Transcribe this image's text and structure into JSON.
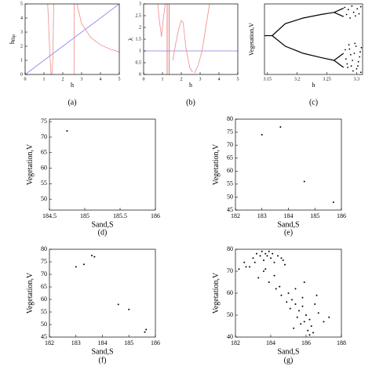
{
  "chart_data": [
    {
      "type": "line",
      "caption": "(a)",
      "xlabel": "h",
      "ylabel": "h",
      "ylabel_sub": "flip",
      "xlim": [
        0,
        5
      ],
      "ylim": [
        0,
        5
      ],
      "xticks": [
        0,
        1,
        2,
        3,
        4,
        5
      ],
      "yticks": [
        0,
        1,
        2,
        3,
        4,
        5
      ],
      "series": [
        {
          "color": "#7b7bf0",
          "x": [
            0,
            5
          ],
          "values": [
            0,
            5
          ]
        },
        {
          "color": "#f08a8a",
          "x": [
            1.2,
            1.28,
            1.33,
            1.38
          ],
          "values": [
            5,
            2.5,
            1,
            0
          ]
        },
        {
          "color": "#f08a8a",
          "x": [
            1.42,
            1.47,
            1.52
          ],
          "values": [
            0,
            1,
            5
          ]
        },
        {
          "color": "#f08a8a",
          "x": [
            2.6,
            2.6
          ],
          "values": [
            0,
            5
          ]
        },
        {
          "color": "#f08a8a",
          "x": [
            2.75,
            3,
            3.5,
            4,
            4.5,
            5
          ],
          "values": [
            5,
            3.6,
            2.6,
            2.1,
            1.8,
            1.6
          ]
        }
      ]
    },
    {
      "type": "line",
      "caption": "(b)",
      "xlabel": "h",
      "ylabel": "λ",
      "xlim": [
        0,
        5
      ],
      "ylim": [
        0,
        3
      ],
      "xticks": [
        0,
        1,
        2,
        3,
        4,
        5
      ],
      "yticks": [
        0,
        0.5,
        1,
        1.5,
        2,
        2.5,
        3
      ],
      "series": [
        {
          "color": "#7b7bf0",
          "x": [
            0,
            5
          ],
          "values": [
            1,
            1
          ]
        },
        {
          "color": "#f08a8a",
          "x": [
            0.75,
            0.85,
            0.95,
            1.05,
            1.15
          ],
          "values": [
            3,
            2.2,
            1.6,
            2.4,
            3
          ]
        },
        {
          "color": "#e06060",
          "x": [
            1.25,
            1.25
          ],
          "values": [
            0,
            3
          ]
        },
        {
          "color": "#e06060",
          "x": [
            1.35,
            1.35
          ],
          "values": [
            0,
            3
          ]
        },
        {
          "color": "#f08a8a",
          "x": [
            1.55,
            1.7,
            1.85,
            2.0,
            2.1,
            2.25,
            2.45,
            2.6
          ],
          "values": [
            0.6,
            1.3,
            1.9,
            2.3,
            2.2,
            1.1,
            0.3,
            0.1
          ]
        },
        {
          "color": "#f08a8a",
          "x": [
            2.7,
            2.9,
            3.1,
            3.3,
            3.5
          ],
          "values": [
            0.05,
            0.4,
            1,
            2,
            3
          ]
        }
      ]
    },
    {
      "type": "line",
      "caption": "(c)",
      "xlabel": "h",
      "ylabel": "Vegetation,V",
      "xlim": [
        3.145,
        3.31
      ],
      "ylim": [
        0,
        1
      ],
      "xticks": [
        3.15,
        3.2,
        3.25,
        3.3
      ],
      "series": [
        {
          "color": "#000000",
          "x": [
            3.145,
            3.158
          ],
          "values": [
            0.55,
            0.55
          ]
        },
        {
          "color": "#000000",
          "x": [
            3.158,
            3.18,
            3.21,
            3.24,
            3.262
          ],
          "values": [
            0.55,
            0.72,
            0.8,
            0.85,
            0.88
          ]
        },
        {
          "color": "#000000",
          "x": [
            3.158,
            3.18,
            3.21,
            3.24,
            3.262
          ],
          "values": [
            0.55,
            0.4,
            0.3,
            0.24,
            0.2
          ]
        },
        {
          "color": "#000000",
          "x": [
            3.262,
            3.278
          ],
          "values": [
            0.88,
            0.94
          ]
        },
        {
          "color": "#000000",
          "x": [
            3.262,
            3.278
          ],
          "values": [
            0.88,
            0.82
          ]
        },
        {
          "color": "#000000",
          "x": [
            3.262,
            3.278
          ],
          "values": [
            0.2,
            0.3
          ]
        },
        {
          "color": "#000000",
          "x": [
            3.262,
            3.278
          ],
          "values": [
            0.2,
            0.1
          ]
        },
        {
          "type": "scatter",
          "color": "#000000",
          "x": [
            3.28,
            3.283,
            3.286,
            3.289,
            3.292,
            3.295,
            3.298,
            3.301,
            3.304,
            3.307,
            3.281,
            3.285,
            3.29,
            3.294,
            3.299,
            3.303,
            3.306,
            3.282,
            3.287,
            3.291,
            3.296,
            3.3,
            3.305,
            3.308,
            3.284,
            3.288,
            3.293,
            3.297,
            3.302,
            3.307
          ],
          "values": [
            0.95,
            0.85,
            0.92,
            0.8,
            0.97,
            0.88,
            0.83,
            0.93,
            0.86,
            0.96,
            0.35,
            0.1,
            0.28,
            0.05,
            0.4,
            0.18,
            0.32,
            0.22,
            0.42,
            0.12,
            0.3,
            0.08,
            0.25,
            0.38,
            0.15,
            0.36,
            0.2,
            0.44,
            0.12,
            0.03
          ]
        }
      ]
    },
    {
      "type": "scatter",
      "caption": "(d)",
      "xlabel": "Sand,S",
      "ylabel": "Vegetation,V",
      "xlim": [
        184.5,
        186
      ],
      "ylim": [
        46.5,
        75.8
      ],
      "xticks": [
        184.5,
        185,
        185.5,
        186
      ],
      "yticks": [
        50,
        55,
        60,
        65,
        70,
        75
      ],
      "series": [
        {
          "color": "#000000",
          "x": [
            184.75
          ],
          "values": [
            72
          ]
        }
      ]
    },
    {
      "type": "scatter",
      "caption": "(e)",
      "xlabel": "Sand,S",
      "ylabel": "Vegetation,V",
      "xlim": [
        182,
        186
      ],
      "ylim": [
        45,
        80
      ],
      "xticks": [
        182,
        183,
        184,
        185,
        186
      ],
      "yticks": [
        45,
        50,
        55,
        60,
        65,
        70,
        75,
        80
      ],
      "series": [
        {
          "color": "#000000",
          "x": [
            183,
            183.7,
            184.6,
            185.7
          ],
          "values": [
            74,
            77,
            56,
            48
          ]
        }
      ]
    },
    {
      "type": "scatter",
      "caption": "(f)",
      "xlabel": "Sand,S",
      "ylabel": "Vegetation,V",
      "xlim": [
        182,
        186
      ],
      "ylim": [
        45,
        80
      ],
      "xticks": [
        182,
        183,
        184,
        185,
        186
      ],
      "yticks": [
        45,
        50,
        55,
        60,
        65,
        70,
        75,
        80
      ],
      "series": [
        {
          "color": "#000000",
          "x": [
            183,
            183.3,
            183.6,
            183.7,
            184.6,
            185,
            185.6,
            185.65
          ],
          "values": [
            73,
            74,
            77.5,
            77,
            58,
            56,
            47,
            48
          ]
        }
      ]
    },
    {
      "type": "scatter",
      "caption": "(g)",
      "xlabel": "Sand,S",
      "ylabel": "Vegetation,V",
      "xlim": [
        182,
        188
      ],
      "ylim": [
        40,
        80
      ],
      "xticks": [
        182,
        184,
        186,
        188
      ],
      "yticks": [
        40,
        50,
        60,
        70,
        80
      ],
      "series": [
        {
          "color": "#000000",
          "x": [
            181.8,
            182.2,
            182.5,
            182.8,
            183,
            183.2,
            183.4,
            183.5,
            183.6,
            183.7,
            183.8,
            183.9,
            184,
            184.1,
            184.2,
            184.4,
            184.6,
            184.8,
            183.3,
            183.6,
            183.9,
            184.2,
            184.5,
            182.6,
            183.1,
            183.7,
            184.3,
            184.7,
            185,
            185.2,
            185.4,
            185.6,
            185.8,
            186,
            186.2,
            186.5,
            185.1,
            185.5,
            185.9,
            186.3,
            186.7,
            185.3,
            185.7,
            186.1,
            186.4,
            187,
            187.3,
            184.9,
            185.8,
            186.2,
            185.4,
            184.6,
            186.6,
            185.9
          ],
          "values": [
            69,
            71,
            74,
            72,
            76,
            78,
            77,
            79,
            75,
            78,
            77,
            79,
            76,
            78,
            74,
            77,
            76,
            73,
            67,
            70,
            65,
            68,
            63,
            72,
            74,
            71,
            62,
            75,
            60,
            57,
            55,
            52,
            58,
            50,
            48,
            55,
            53,
            49,
            47,
            45,
            51,
            44,
            46,
            43,
            42,
            47,
            49,
            56,
            54,
            41,
            62,
            59,
            59,
            65
          ]
        }
      ]
    }
  ]
}
